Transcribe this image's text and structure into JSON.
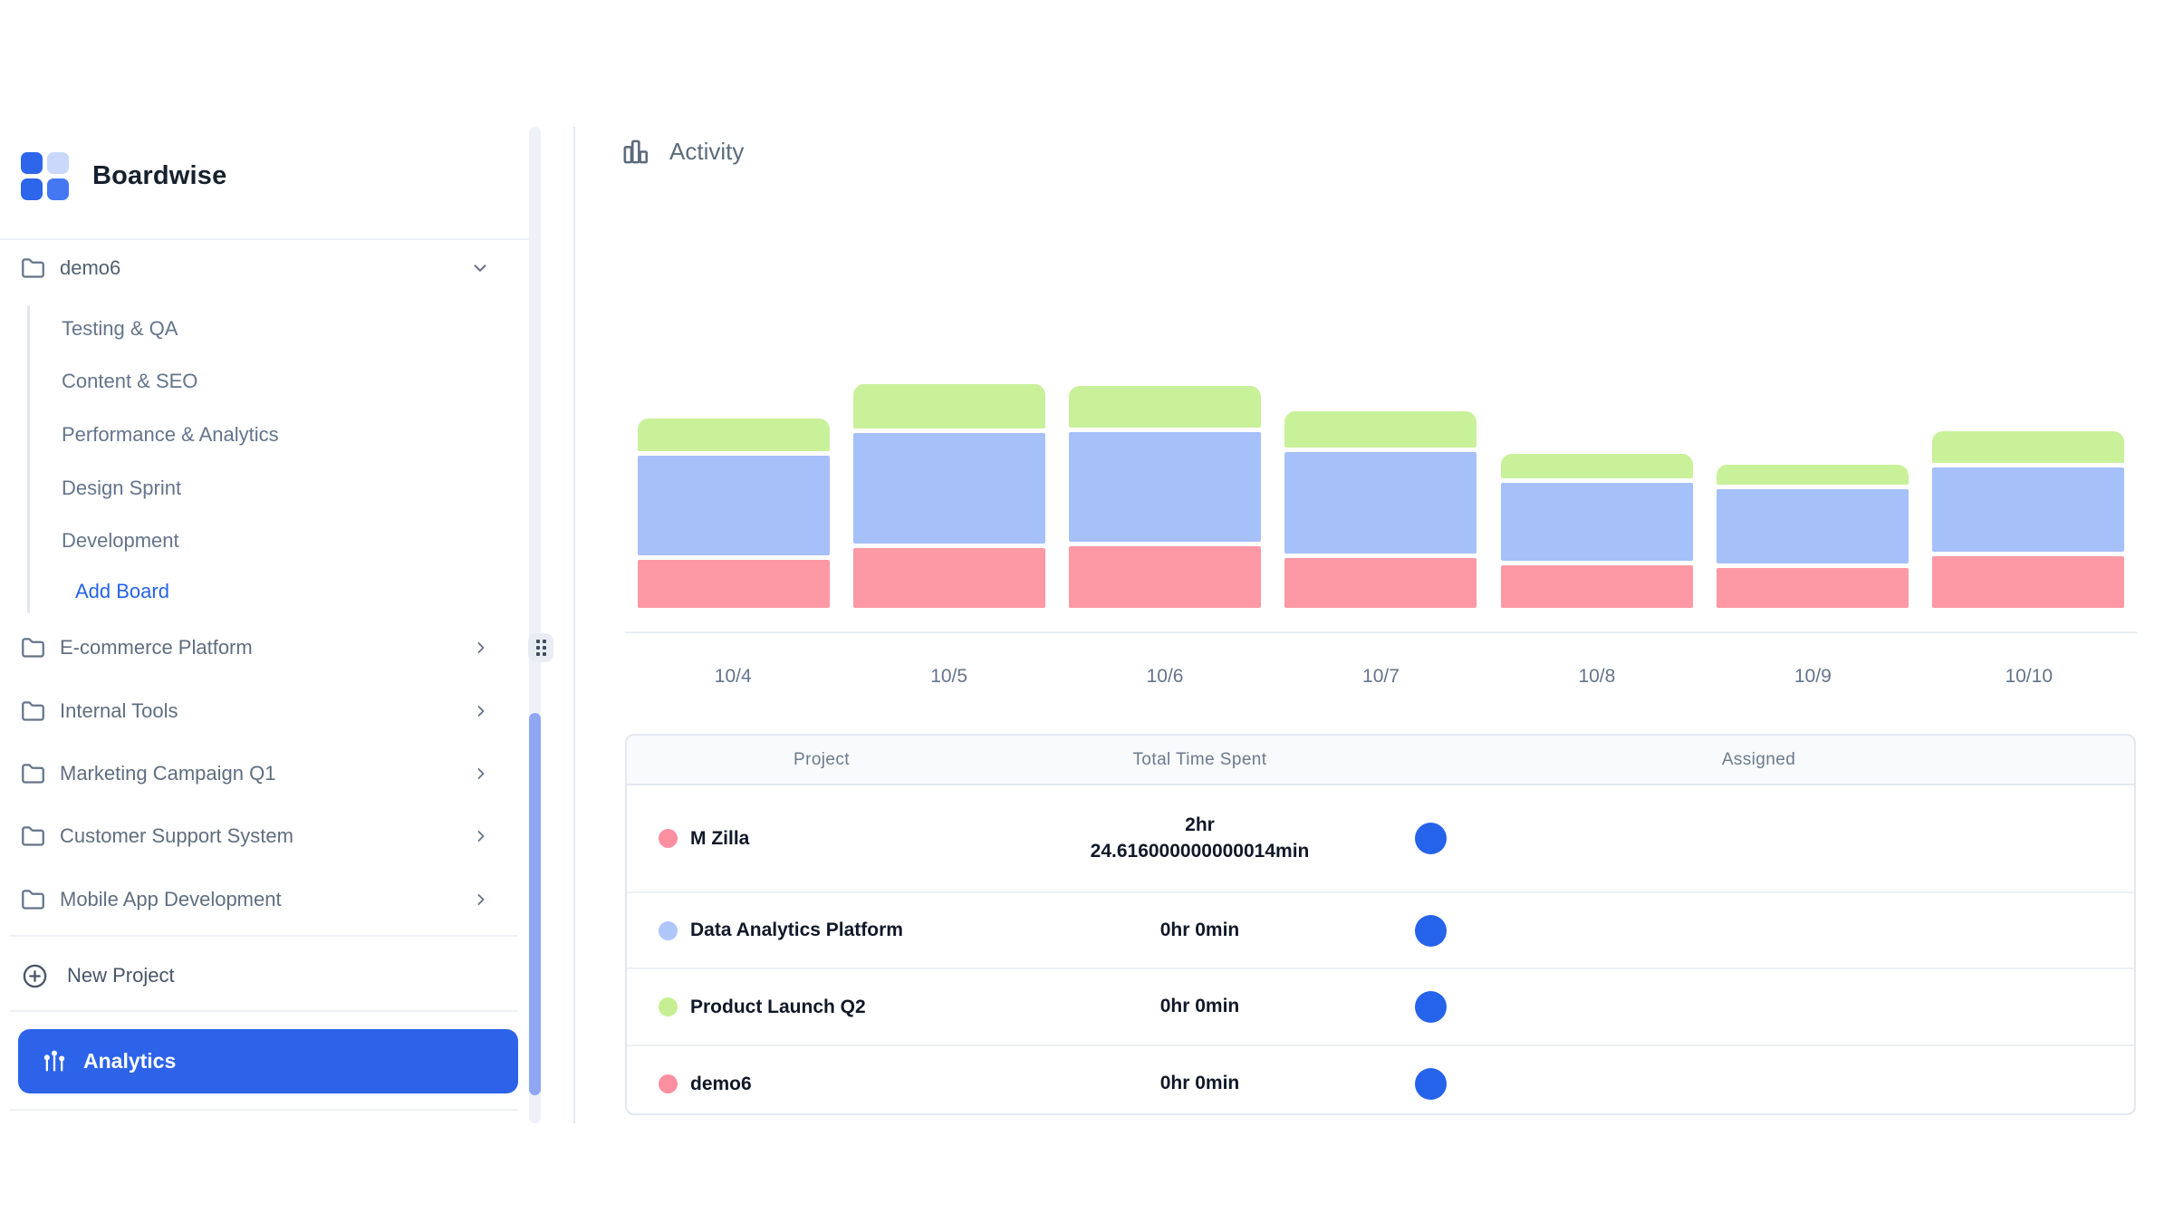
{
  "app": {
    "name": "Boardwise"
  },
  "colors": {
    "accent": "#2563EB",
    "bar_pink": "#FD99A4",
    "bar_blue": "#A6C0FA",
    "bar_green": "#C9F19A",
    "logo_tl": "#2D66EA",
    "logo_tr": "#C9D8FB",
    "logo_bl": "#2D66EA",
    "logo_br": "#4478F2",
    "scroll_thumb": "#8FA7F3"
  },
  "sidebar": {
    "active_project": {
      "label": "demo6"
    },
    "boards": [
      {
        "label": "Testing & QA"
      },
      {
        "label": "Content & SEO"
      },
      {
        "label": "Performance & Analytics"
      },
      {
        "label": "Design Sprint"
      },
      {
        "label": "Development"
      }
    ],
    "add_board_label": "Add Board",
    "projects": [
      {
        "label": "E-commerce Platform"
      },
      {
        "label": "Internal Tools"
      },
      {
        "label": "Marketing Campaign Q1"
      },
      {
        "label": "Customer Support System"
      },
      {
        "label": "Mobile App Development"
      }
    ],
    "new_project_label": "New Project",
    "analytics_label": "Analytics"
  },
  "main": {
    "title": "Activity"
  },
  "chart_data": {
    "type": "bar",
    "stacked": true,
    "title": "Activity",
    "xlabel": "date",
    "ylabel": "",
    "units": "relative height (no y-axis shown in UI)",
    "grid": false,
    "legend": "none (colors match project dots in table below)",
    "categories": [
      "10/4",
      "10/5",
      "10/6",
      "10/7",
      "10/8",
      "10/9",
      "10/10"
    ],
    "series": [
      {
        "name": "M Zilla",
        "color": "#FD99A4",
        "values": [
          53,
          66,
          68,
          55,
          47,
          44,
          57
        ]
      },
      {
        "name": "Data Analytics Platform",
        "color": "#A6C0FA",
        "values": [
          110,
          122,
          121,
          112,
          86,
          82,
          93
        ]
      },
      {
        "name": "Product Launch Q2",
        "color": "#C9F19A",
        "values": [
          36,
          49,
          46,
          40,
          27,
          22,
          35
        ]
      }
    ]
  },
  "table": {
    "columns": [
      "Project",
      "Total Time Spent",
      "Assigned"
    ],
    "rows": [
      {
        "project": "M Zilla",
        "dot_color": "#FB8FA0",
        "time_line1": "2hr",
        "time_line2": "24.616000000000014min"
      },
      {
        "project": "Data Analytics Platform",
        "dot_color": "#AFC6F9",
        "time_line1": "0hr 0min",
        "time_line2": ""
      },
      {
        "project": "Product Launch Q2",
        "dot_color": "#C5EF92",
        "time_line1": "0hr 0min",
        "time_line2": ""
      },
      {
        "project": "demo6",
        "dot_color": "#FB8FA0",
        "time_line1": "0hr 0min",
        "time_line2": ""
      }
    ]
  }
}
